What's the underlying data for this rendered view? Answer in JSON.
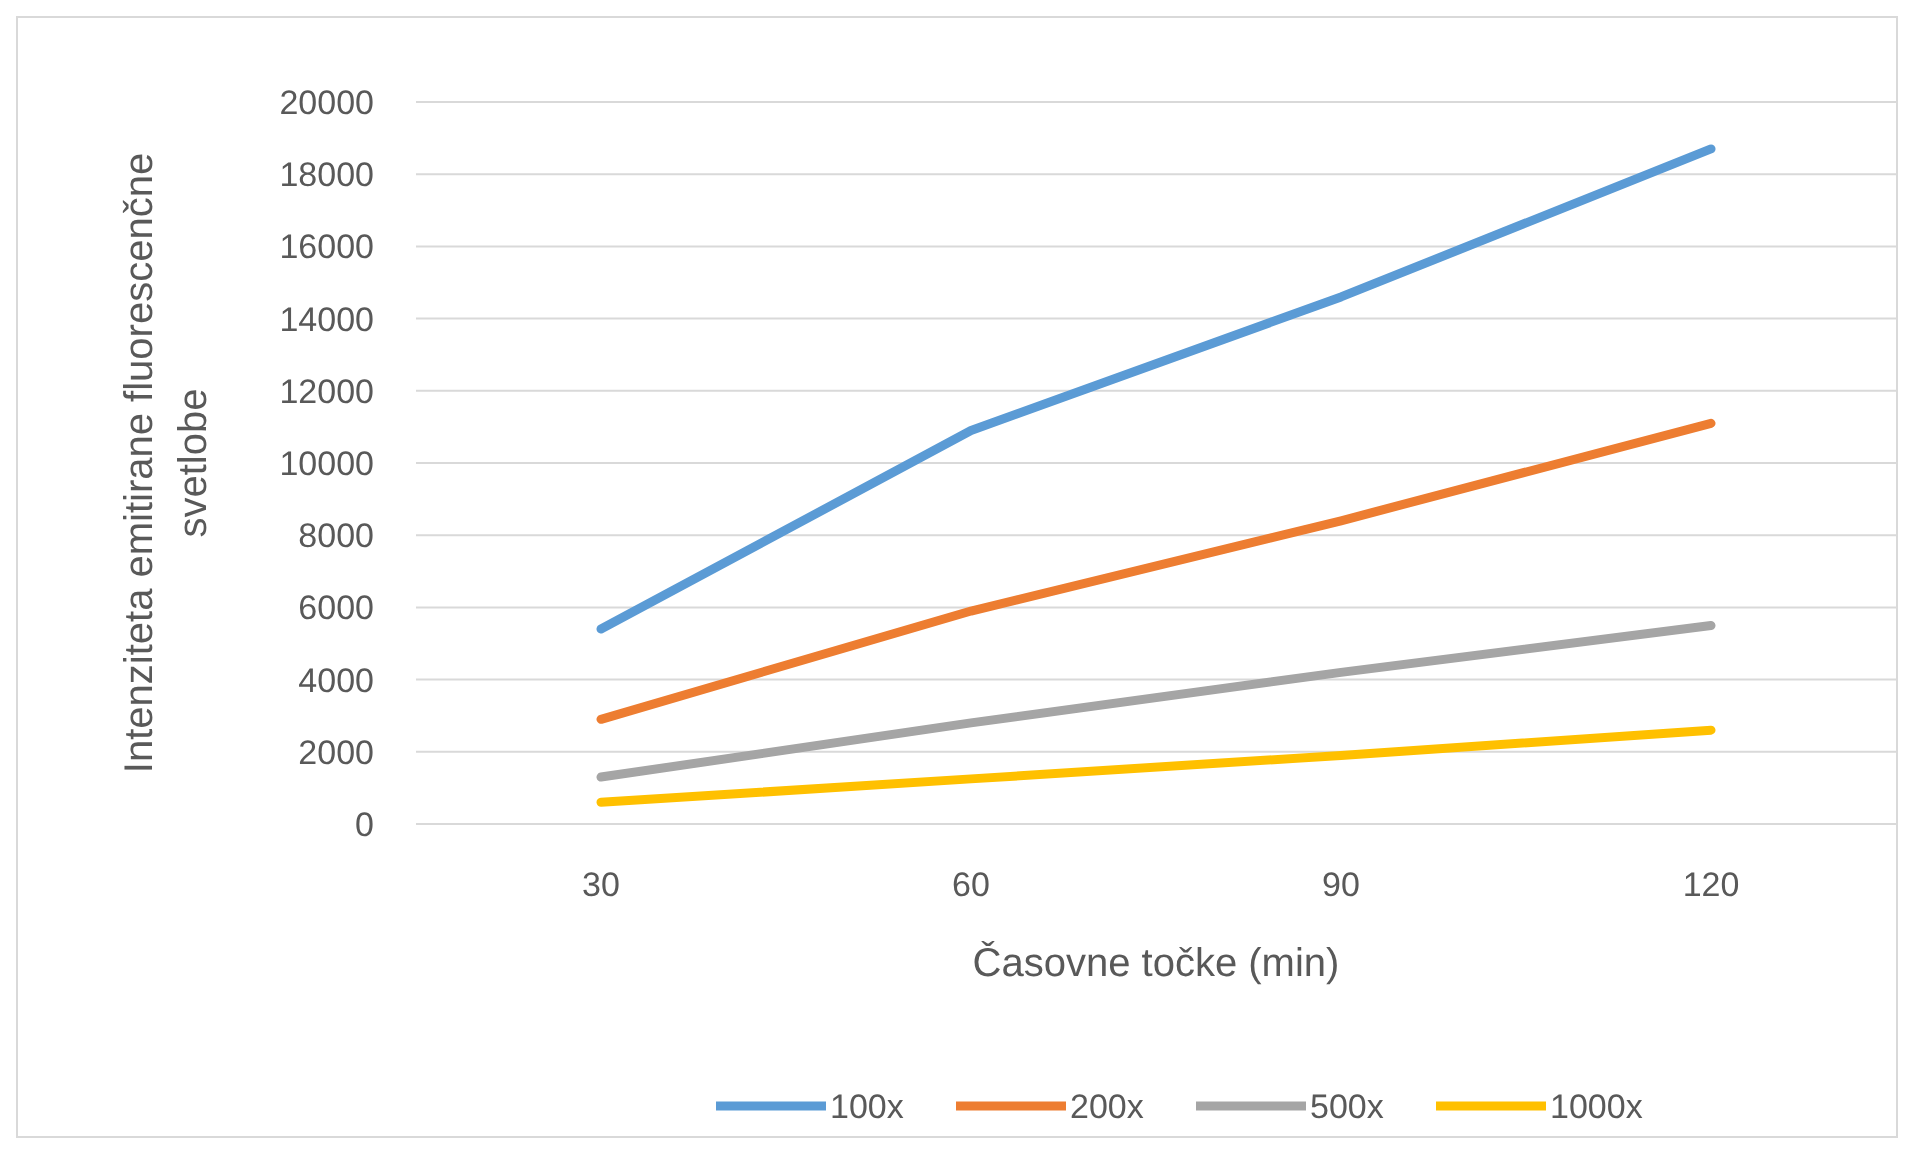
{
  "chart_data": {
    "type": "line",
    "xlabel": "Časovne točke (min)",
    "ylabel": "Intenziteta emitirane fluorescenčne svetlobe",
    "categories": [
      "30",
      "60",
      "90",
      "120"
    ],
    "series": [
      {
        "name": "100x",
        "color": "#5b9bd5",
        "values": [
          5400,
          10900,
          14600,
          18700
        ]
      },
      {
        "name": "200x",
        "color": "#ed7d31",
        "values": [
          2900,
          5900,
          8400,
          11100
        ]
      },
      {
        "name": "500x",
        "color": "#a5a5a5",
        "values": [
          1300,
          2800,
          4200,
          5500
        ]
      },
      {
        "name": "1000x",
        "color": "#ffc000",
        "values": [
          600,
          1250,
          1900,
          2600
        ]
      }
    ],
    "ylim": [
      0,
      20000
    ],
    "yticks": [
      0,
      2000,
      4000,
      6000,
      8000,
      10000,
      12000,
      14000,
      16000,
      18000,
      20000
    ],
    "grid": "y",
    "legend": "bottom",
    "marker": "none",
    "line_style": "solid"
  }
}
